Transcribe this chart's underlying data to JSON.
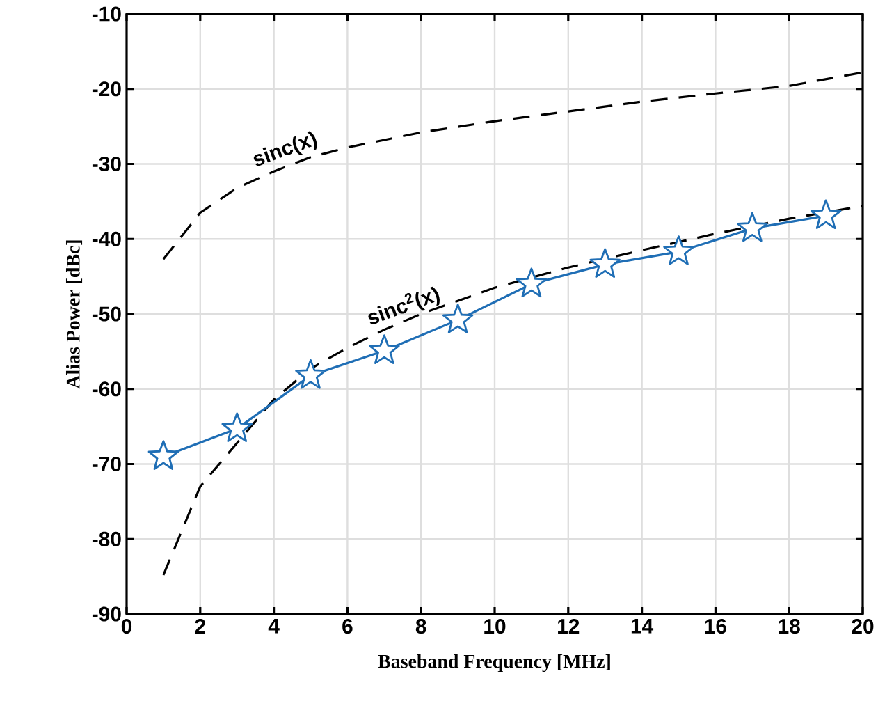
{
  "chart_data": {
    "type": "line",
    "xlabel": "Baseband Frequency [MHz]",
    "ylabel": "Alias Power [dBc]",
    "xlim": [
      0,
      20
    ],
    "ylim": [
      -90,
      -10
    ],
    "xticks": [
      0,
      2,
      4,
      6,
      8,
      10,
      12,
      14,
      16,
      18,
      20
    ],
    "yticks": [
      -90,
      -80,
      -70,
      -60,
      -50,
      -40,
      -30,
      -20,
      -10
    ],
    "grid": true,
    "series": [
      {
        "color": "#000000",
        "line_style": "dashed",
        "marker": "none",
        "x": [
          1,
          2,
          3,
          4,
          5,
          6,
          8,
          10,
          12,
          14,
          16,
          18,
          20
        ],
        "values": [
          -42.7,
          -36.5,
          -33.2,
          -31,
          -29.1,
          -27.8,
          -25.8,
          -24.3,
          -23,
          -21.7,
          -20.6,
          -19.6,
          -17.8
        ]
      },
      {
        "color": "#000000",
        "line_style": "dashed",
        "marker": "none",
        "x": [
          1,
          2,
          4,
          5,
          6,
          7,
          8,
          10,
          12,
          14,
          16,
          18,
          20
        ],
        "values": [
          -84.8,
          -73,
          -61.4,
          -57.3,
          -54.5,
          -52.1,
          -50,
          -46.5,
          -43.8,
          -41.5,
          -39.3,
          -37.3,
          -35.6
        ]
      },
      {
        "color": "#1f6eb5",
        "line_style": "solid",
        "marker": "star",
        "x": [
          1,
          3,
          5,
          7,
          9,
          11,
          13,
          15,
          17,
          19
        ],
        "values": [
          -69,
          -65.3,
          -58.2,
          -54.9,
          -50.8,
          -46,
          -43.4,
          -41.7,
          -38.6,
          -36.9
        ]
      }
    ],
    "annotations": [
      "sinc(x)",
      "sinc$^{2}$(x)"
    ]
  }
}
